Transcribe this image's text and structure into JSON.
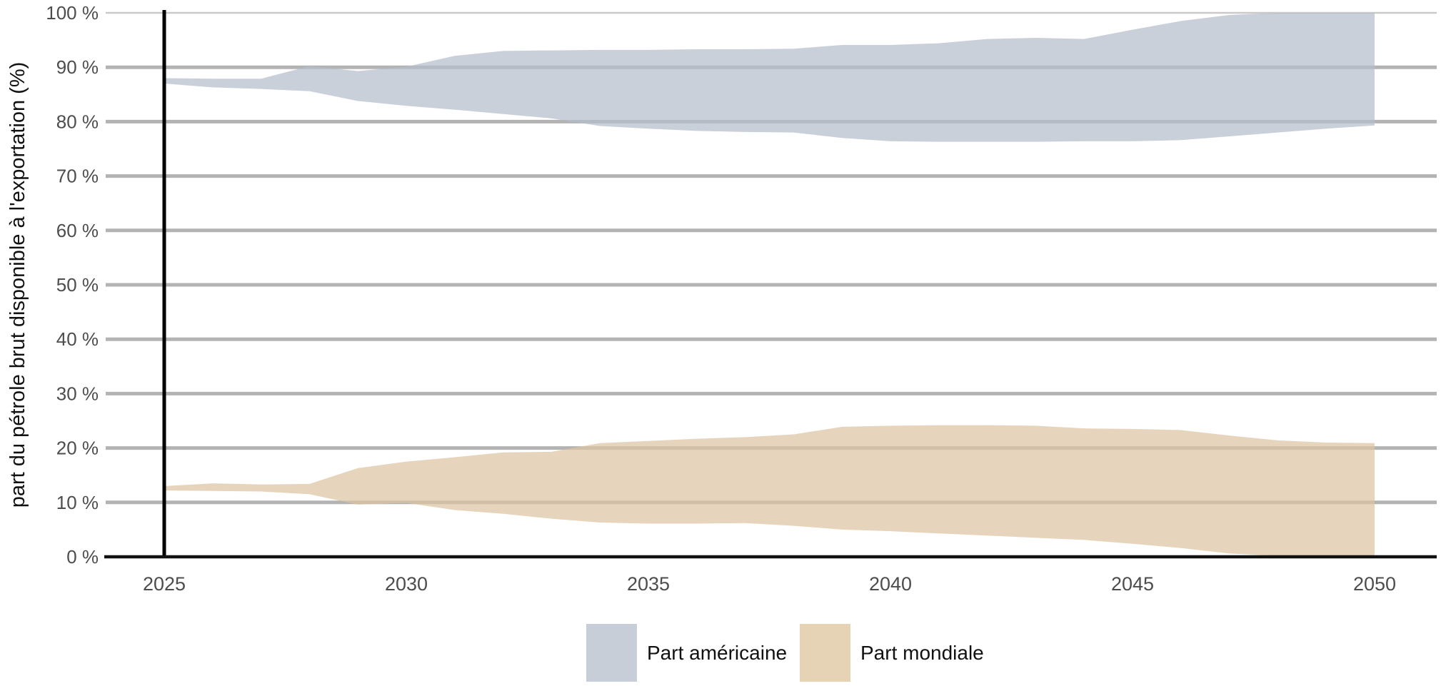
{
  "chart_data": {
    "type": "area",
    "subtype": "uncertainty-bands",
    "title": "",
    "xlabel": "",
    "ylabel": "part du pétrole brut disponible à l'exportation (%)",
    "xlim": [
      2025,
      2050
    ],
    "ylim": [
      0,
      100
    ],
    "grid": "horizontal",
    "legend_position": "bottom",
    "marker_line_x": 2025,
    "x_ticks": [
      2025,
      2030,
      2035,
      2040,
      2045,
      2050
    ],
    "x_tick_labels": [
      "2025",
      "2030",
      "2035",
      "2040",
      "2045",
      "2050"
    ],
    "y_ticks": [
      0,
      10,
      20,
      30,
      40,
      50,
      60,
      70,
      80,
      90,
      100
    ],
    "y_tick_labels": [
      "0 %",
      "10 %",
      "20 %",
      "30 %",
      "40 %",
      "50 %",
      "60 %",
      "70 %",
      "80 %",
      "90 %",
      "100 %"
    ],
    "years": [
      2025,
      2026,
      2027,
      2028,
      2029,
      2030,
      2031,
      2032,
      2033,
      2034,
      2035,
      2036,
      2037,
      2038,
      2039,
      2040,
      2041,
      2042,
      2043,
      2044,
      2045,
      2046,
      2047,
      2048,
      2049,
      2050
    ],
    "series": [
      {
        "name": "Part américaine",
        "band_fill": "rgba(180,190,202,0.72)",
        "legend_color": "#c7ced8",
        "upper": [
          88.0,
          87.9,
          87.9,
          90.2,
          89.3,
          90.1,
          92.1,
          93.0,
          93.1,
          93.2,
          93.2,
          93.3,
          93.3,
          93.4,
          94.1,
          94.1,
          94.4,
          95.2,
          95.4,
          95.2,
          96.9,
          98.5,
          99.6,
          100,
          100,
          100
        ],
        "lower": [
          87.0,
          86.3,
          86.0,
          85.6,
          83.8,
          82.9,
          82.2,
          81.4,
          80.6,
          79.2,
          78.7,
          78.3,
          78.1,
          78.0,
          77.0,
          76.4,
          76.3,
          76.3,
          76.3,
          76.4,
          76.4,
          76.6,
          77.3,
          78.0,
          78.7,
          79.3
        ]
      },
      {
        "name": "Part mondiale",
        "band_fill": "rgba(220,197,162,0.72)",
        "legend_color": "#e6d2b4",
        "upper": [
          13.0,
          13.5,
          13.3,
          13.4,
          16.3,
          17.5,
          18.3,
          19.2,
          19.3,
          20.9,
          21.3,
          21.7,
          22.0,
          22.5,
          23.9,
          24.1,
          24.2,
          24.2,
          24.1,
          23.6,
          23.5,
          23.3,
          22.3,
          21.4,
          21.0,
          20.9
        ],
        "lower": [
          12.2,
          12.1,
          12.0,
          11.5,
          9.6,
          9.9,
          8.6,
          7.9,
          7.0,
          6.3,
          6.1,
          6.1,
          6.2,
          5.7,
          5.0,
          4.7,
          4.3,
          3.9,
          3.5,
          3.1,
          2.4,
          1.6,
          0.6,
          0.2,
          0.1,
          0.0
        ]
      }
    ],
    "colors": {
      "grid_major": "#b3b3b3",
      "grid_top": "#c9c9c9",
      "axis_line": "#111111",
      "marker_line": "#000000",
      "tick_text": "#4d4d4d",
      "title_text": "#111111"
    }
  },
  "legend": {
    "entries": [
      {
        "label": "Part américaine"
      },
      {
        "label": "Part mondiale"
      }
    ]
  }
}
